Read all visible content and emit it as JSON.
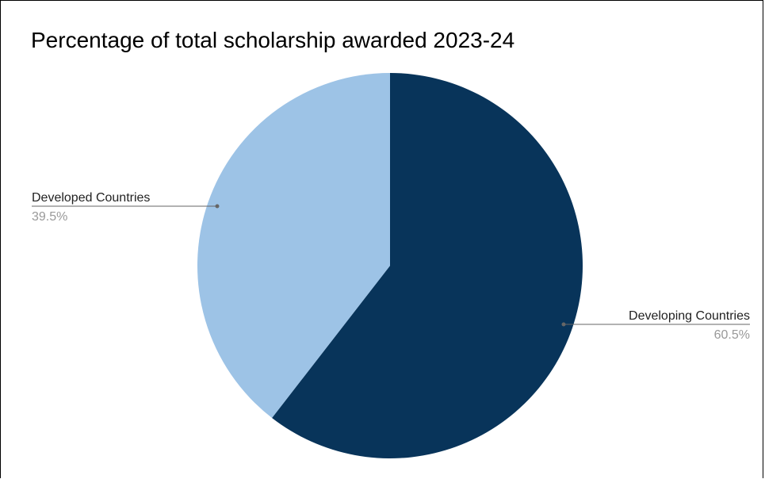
{
  "chart_data": {
    "type": "pie",
    "title": "Percentage of total scholarship awarded 2023-24",
    "slices": [
      {
        "label": "Developing Countries",
        "value": 60.5,
        "display": "60.5%",
        "color": "#08345a"
      },
      {
        "label": "Developed Countries",
        "value": 39.5,
        "display": "39.5%",
        "color": "#9dc3e6"
      }
    ],
    "start_angle": "12 o'clock",
    "direction": "clockwise",
    "legend": "none",
    "label_color": "#222222",
    "percent_color": "#999999",
    "leader_color": "#666666"
  }
}
